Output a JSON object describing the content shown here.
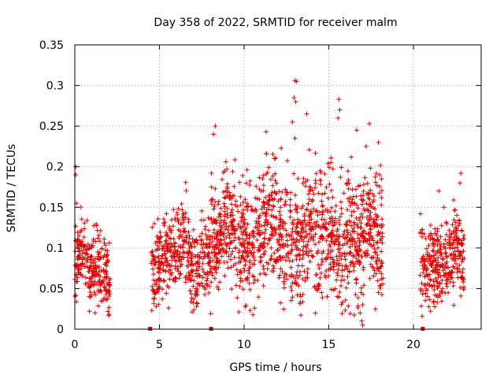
{
  "chart_data": {
    "type": "scatter",
    "title": "Day 358 of 2022, SRMTID for receiver malm",
    "xlabel": "GPS time / hours",
    "ylabel": "SRMTID / TECUs",
    "xlim": [
      0,
      24
    ],
    "ylim": [
      0,
      0.35
    ],
    "xticks": [
      0,
      5,
      10,
      15,
      20
    ],
    "xtick_labels": [
      "0",
      "5",
      "10",
      "15",
      "20"
    ],
    "yticks": [
      0,
      0.05,
      0.1,
      0.15,
      0.2,
      0.25,
      0.3,
      0.35
    ],
    "ytick_labels": [
      "0",
      "0.05",
      "0.1",
      "0.15",
      "0.2",
      "0.25",
      "0.3",
      "0.35"
    ],
    "grid": true,
    "marker": "+",
    "color": "#e00000",
    "segments": [
      {
        "x_start": 0.0,
        "x_end": 2.1,
        "count": 260,
        "center": 0.075,
        "spread": 0.022
      },
      {
        "x_start": 4.5,
        "x_end": 8.0,
        "count": 420,
        "center": 0.09,
        "spread": 0.025
      },
      {
        "x_start": 8.0,
        "x_end": 12.0,
        "count": 520,
        "center": 0.115,
        "spread": 0.035
      },
      {
        "x_start": 12.0,
        "x_end": 18.2,
        "count": 780,
        "center": 0.115,
        "spread": 0.037
      },
      {
        "x_start": 20.4,
        "x_end": 23.0,
        "count": 330,
        "center": 0.085,
        "spread": 0.024
      }
    ],
    "notable_points": [
      {
        "x": 0.05,
        "y": 0.19
      },
      {
        "x": 0.05,
        "y": 0.2
      },
      {
        "x": 0.1,
        "y": 0.155
      },
      {
        "x": 1.2,
        "y": 0.02
      },
      {
        "x": 8.3,
        "y": 0.25
      },
      {
        "x": 8.2,
        "y": 0.24
      },
      {
        "x": 11.3,
        "y": 0.243
      },
      {
        "x": 12.95,
        "y": 0.285
      },
      {
        "x": 13.05,
        "y": 0.28
      },
      {
        "x": 13.0,
        "y": 0.306
      },
      {
        "x": 13.1,
        "y": 0.305
      },
      {
        "x": 13.0,
        "y": 0.235
      },
      {
        "x": 12.85,
        "y": 0.255
      },
      {
        "x": 13.7,
        "y": 0.265
      },
      {
        "x": 15.6,
        "y": 0.283
      },
      {
        "x": 15.55,
        "y": 0.26
      },
      {
        "x": 15.65,
        "y": 0.27
      },
      {
        "x": 16.65,
        "y": 0.245
      },
      {
        "x": 17.2,
        "y": 0.225
      },
      {
        "x": 17.4,
        "y": 0.253
      },
      {
        "x": 16.9,
        "y": 0.045
      },
      {
        "x": 16.95,
        "y": 0.01
      },
      {
        "x": 17.0,
        "y": 0.005
      },
      {
        "x": 16.85,
        "y": 0.02
      },
      {
        "x": 17.0,
        "y": 0.03
      },
      {
        "x": 18.0,
        "y": 0.19
      },
      {
        "x": 22.8,
        "y": 0.192
      },
      {
        "x": 22.75,
        "y": 0.18
      },
      {
        "x": 21.8,
        "y": 0.15
      },
      {
        "x": 21.5,
        "y": 0.17
      }
    ],
    "gap_markers": [
      4.45,
      8.05,
      20.55
    ]
  }
}
